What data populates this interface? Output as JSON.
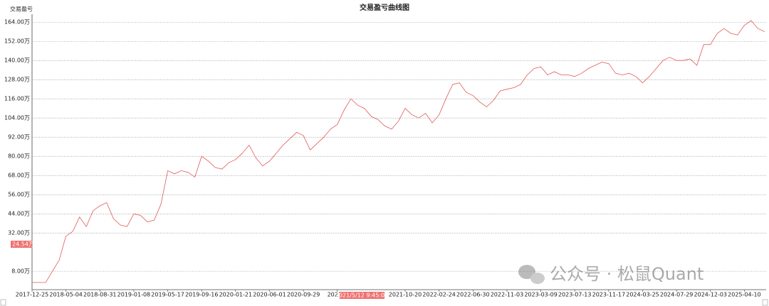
{
  "chart_data": {
    "type": "line",
    "title": "交易盈亏曲线图",
    "y_label": "交易盈亏",
    "categories": [
      "2017-12-25",
      null,
      null,
      null,
      null,
      "2018-05-04",
      null,
      null,
      null,
      null,
      "2018-08-31",
      null,
      null,
      null,
      null,
      "2019-01-08",
      null,
      null,
      null,
      null,
      "2019-05-17",
      null,
      null,
      null,
      null,
      "2019-09-16",
      null,
      null,
      null,
      null,
      "2020-01-21",
      null,
      null,
      null,
      null,
      "2020-06-01",
      null,
      null,
      null,
      null,
      "2020-09-29",
      null,
      null,
      null,
      null,
      "2021-0",
      null,
      null,
      null,
      null,
      null,
      null,
      null,
      null,
      null,
      "2021-10-20",
      null,
      null,
      null,
      null,
      "2022-02-24",
      null,
      null,
      null,
      null,
      "2022-06-30",
      null,
      null,
      null,
      null,
      "2022-11-03",
      null,
      null,
      null,
      null,
      "2023-03-09",
      null,
      null,
      null,
      null,
      "2023-07-13",
      null,
      null,
      null,
      null,
      "2023-11-17",
      null,
      null,
      null,
      null,
      "2024-03-25",
      null,
      null,
      null,
      null,
      "2024-07-29",
      null,
      null,
      null,
      null,
      "2024-12-03",
      null,
      null,
      null,
      null,
      "2025-04-10",
      null,
      null,
      null
    ],
    "series": [
      {
        "color": "#e05a5a",
        "values": [
          1,
          1,
          1,
          8,
          15,
          30,
          33,
          42,
          36,
          46,
          49,
          51,
          41,
          37,
          36,
          44,
          43,
          39,
          40,
          50,
          71,
          69,
          71,
          70,
          67,
          80,
          77,
          73,
          72,
          76,
          78,
          82,
          87,
          79,
          74,
          77,
          82,
          87,
          91,
          95,
          93,
          84,
          88,
          92,
          97,
          100,
          109,
          116,
          112,
          110,
          105,
          103,
          99,
          97,
          102,
          110,
          106,
          104,
          107,
          101,
          106,
          116,
          125,
          126,
          120,
          118,
          114,
          111,
          115,
          121,
          122,
          123,
          125,
          131,
          135,
          136,
          131,
          133,
          131,
          131,
          130,
          132,
          135,
          137,
          139,
          138,
          132,
          131,
          132,
          130,
          126,
          130,
          135,
          140,
          142,
          140,
          140,
          141,
          137,
          150,
          150,
          157,
          160,
          157,
          156,
          162,
          165,
          160,
          158
        ]
      }
    ],
    "ylim": [
      -3.5,
      169
    ],
    "yticks": [
      {
        "value": 8,
        "label": "8.00万"
      },
      {
        "value": 32,
        "label": "32.00万"
      },
      {
        "value": 44,
        "label": "44.00万"
      },
      {
        "value": 56,
        "label": "56.00万"
      },
      {
        "value": 68,
        "label": "68.00万"
      },
      {
        "value": 80,
        "label": "80.00万"
      },
      {
        "value": 92,
        "label": "92.00万"
      },
      {
        "value": 104,
        "label": "104.00万"
      },
      {
        "value": 116,
        "label": "116.00万"
      },
      {
        "value": 128,
        "label": "128.00万"
      },
      {
        "value": 140,
        "label": "140.00万"
      },
      {
        "value": 152,
        "label": "152.00万"
      },
      {
        "value": 164,
        "label": "164.00万"
      }
    ],
    "grid": true,
    "cursor_y_label": "24.54万",
    "cursor_x_label": "2021/5/12 9:45:06",
    "watermark": "公众号 · 松鼠Quant"
  }
}
